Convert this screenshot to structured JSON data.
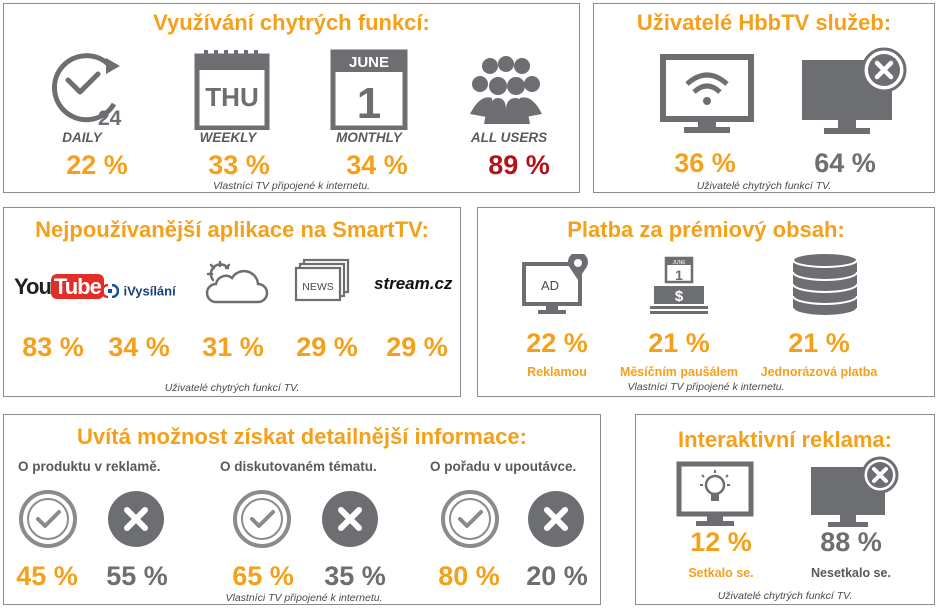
{
  "p1": {
    "title": "Využívání chytrých funkcí:",
    "items": [
      {
        "label": "DAILY",
        "value": "22 %",
        "icon_text": "24"
      },
      {
        "label": "WEEKLY",
        "value": "33 %",
        "icon_text": "THU"
      },
      {
        "label": "MONTHLY",
        "value": "34 %",
        "icon_text_top": "JUNE",
        "icon_text": "1"
      },
      {
        "label": "ALL USERS",
        "value": "89 %"
      }
    ],
    "footnote": "Vlastníci TV připojené k internetu."
  },
  "p2": {
    "title": "Uživatelé HbbTV služeb:",
    "values": [
      "36 %",
      "64 %"
    ],
    "footnote": "Uživatelé chytrých funkcí TV."
  },
  "p3": {
    "title": "Nejpoužívanější aplikace na SmartTV:",
    "apps": [
      {
        "logo": "YouTube",
        "logo_a": "You",
        "logo_b": "Tube",
        "value": "83 %"
      },
      {
        "logo": "iVysílání",
        "value": "34 %"
      },
      {
        "logo": "weather-icon",
        "value": "31 %"
      },
      {
        "logo": "NEWS",
        "value": "29 %"
      },
      {
        "logo": "stream.cz",
        "value": "29 %"
      }
    ],
    "footnote": "Uživatelé chytrých funkcí TV."
  },
  "p4": {
    "title": "Platba za prémiový obsah:",
    "items": [
      {
        "value": "22 %",
        "label": "Reklamou",
        "icon_text": "AD"
      },
      {
        "value": "21 %",
        "label": "Měsíčním paušálem",
        "icon_text_top": "JUNE",
        "icon_text": "1"
      },
      {
        "value": "21 %",
        "label": "Jednorázová platba"
      }
    ],
    "footnote": "Vlastníci TV připojené k internetu."
  },
  "p5": {
    "title": "Uvítá možnost získat detailnější informace:",
    "groups": [
      {
        "question": "O produktu v reklamě.",
        "yes": "45 %",
        "no": "55 %"
      },
      {
        "question": "O diskutovaném tématu.",
        "yes": "65 %",
        "no": "35 %"
      },
      {
        "question": "O pořadu v upoutávce.",
        "yes": "80 %",
        "no": "20 %"
      }
    ],
    "footnote": "Vlastníci TV připojené k internetu."
  },
  "p6": {
    "title": "Interaktivní reklama:",
    "items": [
      {
        "value": "12 %",
        "label": "Setkalo se."
      },
      {
        "value": "88 %",
        "label": "Nesetkalo se."
      }
    ],
    "footnote": "Uživatelé chytrých funkcí TV."
  },
  "colors": {
    "accent": "#f5a01a",
    "grey": "#6d6e71",
    "red": "#b3111c",
    "youtube_red": "#e52d27"
  }
}
